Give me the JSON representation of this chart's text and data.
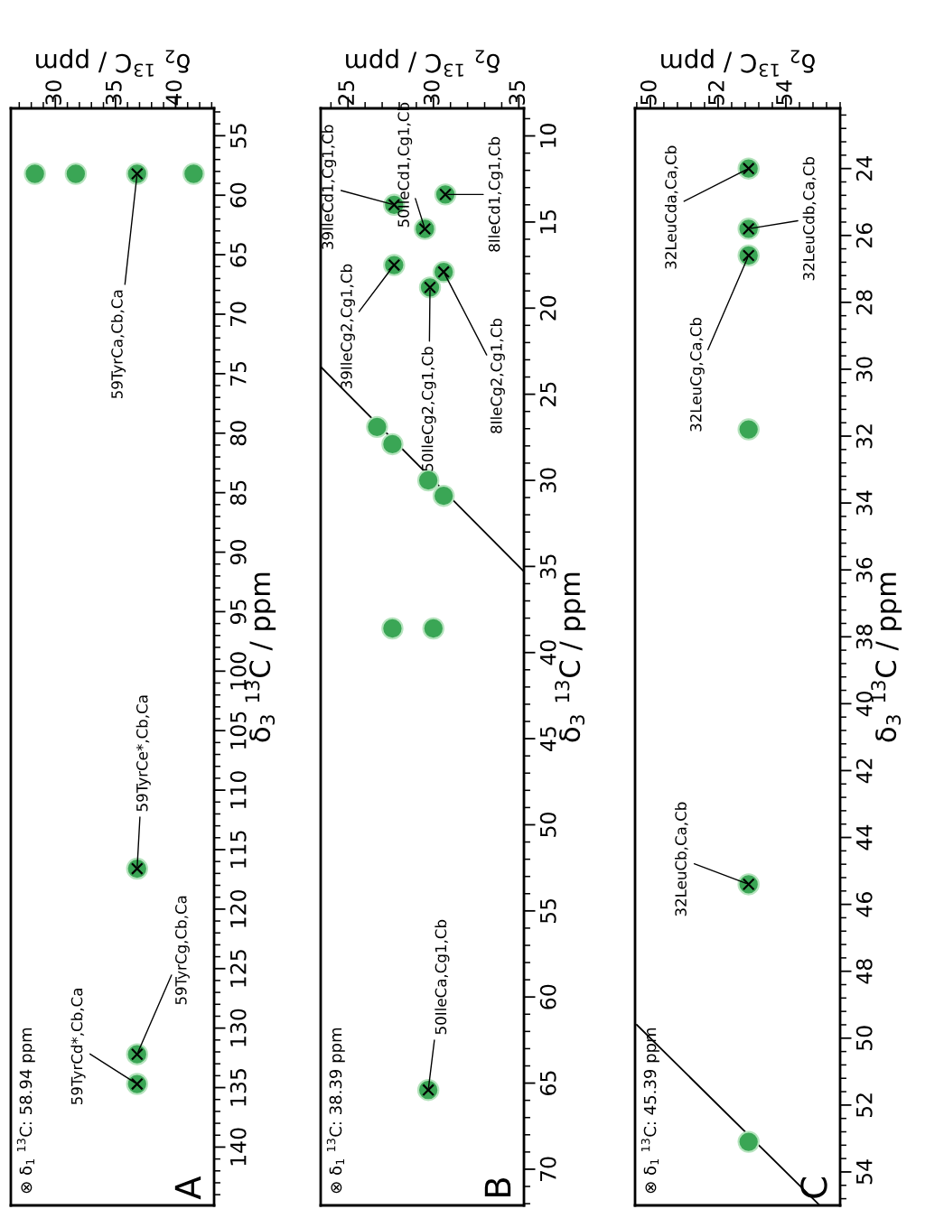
{
  "chart_data": [
    {
      "type": "scatter",
      "xlabel": "δ$_{2}$ $^{13}$C / ppm",
      "ylabel": "δ$_{3}$ $^{13}$C / ppm",
      "xlim": [
        26.3,
        43.2
      ],
      "xticks": [
        30,
        35,
        40
      ],
      "ylim": [
        144.9,
        52.7
      ],
      "yticks": [
        55,
        60,
        65,
        70,
        75,
        80,
        85,
        90,
        95,
        100,
        105,
        110,
        115,
        120,
        125,
        130,
        135,
        140
      ],
      "grid": false,
      "legend": false,
      "series": [
        {
          "type": "scatter",
          "color": "#3aa655",
          "marker": "circle",
          "x": [
            28.3,
            31.7,
            36.8,
            41.5,
            36.8,
            36.8,
            36.8
          ],
          "values": [
            58.2,
            58.2,
            58.2,
            58.2,
            116.6,
            132.2,
            134.7
          ]
        },
        {
          "type": "scatter",
          "color": "#000000",
          "marker": "cross",
          "x": [
            36.8,
            36.8,
            36.8,
            36.8
          ],
          "values": [
            58.2,
            116.6,
            132.2,
            134.7
          ]
        }
      ],
      "annotations": [
        "⊗ δ$_{1}$ $^{13}$C: 58.94 ppm",
        "A",
        {
          "text": "59TyrCa,Cb,Ca",
          "x": 36.8,
          "y": 58.2
        },
        {
          "text": "59TyrCe*,Cb,Ca",
          "x": 36.8,
          "y": 116.6
        },
        {
          "text": "59TyrCg,Cb,Ca",
          "x": 36.8,
          "y": 132.2
        },
        {
          "text": "59TyrCd*,Cb,Ca",
          "x": 36.8,
          "y": 134.7
        }
      ]
    },
    {
      "type": "scatter",
      "xlabel": "δ$_{2}$ $^{13}$C / ppm",
      "ylabel": "δ$_{3}$ $^{13}$C / ppm",
      "xlim": [
        23.4,
        35.3
      ],
      "xticks": [
        25,
        30,
        35
      ],
      "ylim": [
        72.1,
        8.4
      ],
      "yticks": [
        10,
        15,
        20,
        25,
        30,
        35,
        40,
        45,
        50,
        55,
        60,
        65,
        70
      ],
      "grid": false,
      "legend": false,
      "series": [
        {
          "type": "scatter",
          "color": "#3aa655",
          "marker": "circle",
          "x": [
            27.7,
            29.5,
            30.7,
            27.7,
            29.8,
            30.6,
            29.7,
            26.7,
            27.6,
            29.7,
            30.6,
            27.6,
            30.0
          ],
          "values": [
            14.0,
            15.4,
            13.4,
            17.5,
            18.8,
            17.9,
            65.4,
            26.9,
            27.9,
            30.0,
            30.9,
            38.6,
            38.6
          ]
        },
        {
          "type": "scatter",
          "color": "#000000",
          "marker": "cross",
          "x": [
            27.7,
            29.5,
            30.7,
            27.7,
            29.8,
            30.6,
            29.7
          ],
          "values": [
            14.0,
            15.4,
            13.4,
            17.5,
            18.8,
            17.9,
            65.4
          ]
        },
        {
          "type": "line",
          "color": "#000000",
          "marker": "none",
          "x": [
            23.4,
            35.3
          ],
          "values": [
            23.4,
            35.3
          ]
        }
      ],
      "annotations": [
        "⊗ δ$_{1}$ $^{13}$C: 38.39 ppm",
        "B",
        {
          "text": "39IleCd1,Cg1,Cb",
          "x": 27.7,
          "y": 14.0
        },
        {
          "text": "50IleCd1,Cg1,Cb",
          "x": 29.5,
          "y": 15.4
        },
        {
          "text": "8IleCd1,Cg1,Cb",
          "x": 30.7,
          "y": 13.4
        },
        {
          "text": "39IleCg2,Cg1,Cb",
          "x": 27.7,
          "y": 17.5
        },
        {
          "text": "50IleCg2,Cg1,Cb",
          "x": 29.8,
          "y": 18.8
        },
        {
          "text": "8IleCg2,Cg1,Cb",
          "x": 30.6,
          "y": 17.9
        },
        {
          "text": "50IleCa,Cg1,Cb",
          "x": 29.7,
          "y": 65.4
        }
      ]
    },
    {
      "type": "scatter",
      "xlabel": "δ$_{2}$ $^{13}$C / ppm",
      "ylabel": "δ$_{3}$ $^{13}$C / ppm",
      "xlim": [
        49.55,
        55.6
      ],
      "xticks": [
        50,
        52,
        54
      ],
      "ylim": [
        55.0,
        22.2
      ],
      "yticks": [
        24,
        26,
        28,
        30,
        32,
        34,
        36,
        38,
        40,
        42,
        44,
        46,
        48,
        50,
        52,
        54
      ],
      "grid": false,
      "legend": false,
      "series": [
        {
          "type": "scatter",
          "color": "#3aa655",
          "marker": "circle",
          "x": [
            52.9,
            52.9,
            52.9,
            52.9,
            52.9,
            52.9
          ],
          "values": [
            24.0,
            25.8,
            26.6,
            45.4,
            53.1,
            31.8
          ]
        },
        {
          "type": "scatter",
          "color": "#000000",
          "marker": "cross",
          "x": [
            52.9,
            52.9,
            52.9,
            52.9
          ],
          "values": [
            24.0,
            25.8,
            26.6,
            45.4
          ]
        },
        {
          "type": "line",
          "color": "#000000",
          "marker": "none",
          "x": [
            49.6,
            55.0
          ],
          "values": [
            49.6,
            55.0
          ]
        }
      ],
      "annotations": [
        "⊗ δ$_{1}$ $^{13}$C: 45.39 ppm",
        "C",
        {
          "text": "32LeuCda,Ca,Cb",
          "x": 52.9,
          "y": 24.0
        },
        {
          "text": "32LeuCdb,Ca,Cb",
          "x": 52.9,
          "y": 25.8
        },
        {
          "text": "32LeuCg,Ca,Cb",
          "x": 52.9,
          "y": 26.6
        },
        {
          "text": "32LeuCb,Ca,Cb",
          "x": 52.9,
          "y": 45.4
        }
      ]
    }
  ]
}
